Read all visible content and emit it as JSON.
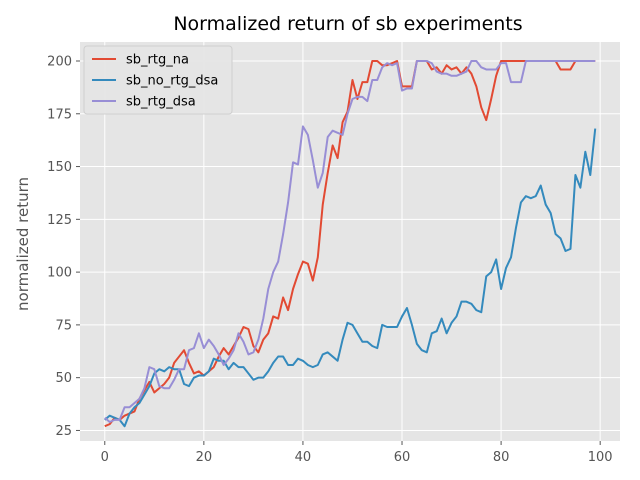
{
  "chart_data": {
    "type": "line",
    "title": "Normalized return of sb experiments",
    "xlabel": "",
    "ylabel": "normalized return",
    "xlim": [
      -5,
      104
    ],
    "ylim": [
      20,
      209
    ],
    "xticks": [
      0,
      20,
      40,
      60,
      80,
      100
    ],
    "yticks": [
      25,
      50,
      75,
      100,
      125,
      150,
      175,
      200
    ],
    "grid": true,
    "background": "#e5e5e5",
    "legend_position": "top-left",
    "series": [
      {
        "name": "sb_rtg_na",
        "color": "#e24a33",
        "x": [
          0,
          1,
          2,
          3,
          4,
          5,
          6,
          7,
          8,
          9,
          10,
          11,
          12,
          13,
          14,
          15,
          16,
          17,
          18,
          19,
          20,
          21,
          22,
          23,
          24,
          25,
          26,
          27,
          28,
          29,
          30,
          31,
          32,
          33,
          34,
          35,
          36,
          37,
          38,
          39,
          40,
          41,
          42,
          43,
          44,
          45,
          46,
          47,
          48,
          49,
          50,
          51,
          52,
          53,
          54,
          55,
          56,
          57,
          58,
          59,
          60,
          61,
          62,
          63,
          64,
          65,
          66,
          67,
          68,
          69,
          70,
          71,
          72,
          73,
          74,
          75,
          76,
          77,
          78,
          79,
          80,
          81,
          82,
          83,
          84,
          85,
          86,
          87,
          88,
          89,
          90,
          91,
          92,
          93,
          94,
          95,
          96,
          97,
          98,
          99
        ],
        "y": [
          27,
          28,
          31,
          30,
          32,
          33,
          34,
          40,
          44,
          48,
          43,
          45,
          47,
          50,
          57,
          60,
          63,
          57,
          52,
          53,
          51,
          53,
          55,
          60,
          64,
          61,
          65,
          69,
          74,
          73,
          65,
          62,
          68,
          71,
          79,
          78,
          88,
          82,
          92,
          99,
          105,
          104,
          96,
          107,
          132,
          147,
          160,
          154,
          171,
          176,
          191,
          182,
          190,
          190,
          200,
          200,
          198,
          198,
          199,
          200,
          188,
          188,
          188,
          200,
          200,
          200,
          196,
          197,
          194,
          198,
          196,
          197,
          194,
          197,
          194,
          188,
          178,
          172,
          182,
          193,
          200,
          200,
          200,
          200,
          200,
          200,
          200,
          200,
          200,
          200,
          200,
          200,
          196,
          196,
          196,
          200,
          200,
          200,
          200,
          200
        ]
      },
      {
        "name": "sb_no_rtg_dsa",
        "color": "#348abd",
        "x": [
          0,
          1,
          2,
          3,
          4,
          5,
          6,
          7,
          8,
          9,
          10,
          11,
          12,
          13,
          14,
          15,
          16,
          17,
          18,
          19,
          20,
          21,
          22,
          23,
          24,
          25,
          26,
          27,
          28,
          29,
          30,
          31,
          32,
          33,
          34,
          35,
          36,
          37,
          38,
          39,
          40,
          41,
          42,
          43,
          44,
          45,
          46,
          47,
          48,
          49,
          50,
          51,
          52,
          53,
          54,
          55,
          56,
          57,
          58,
          59,
          60,
          61,
          62,
          63,
          64,
          65,
          66,
          67,
          68,
          69,
          70,
          71,
          72,
          73,
          74,
          75,
          76,
          77,
          78,
          79,
          80,
          81,
          82,
          83,
          84,
          85,
          86,
          87,
          88,
          89,
          90,
          91,
          92,
          93,
          94,
          95,
          96,
          97,
          98,
          99
        ],
        "y": [
          30,
          32,
          31,
          30,
          27,
          33,
          36,
          38,
          42,
          46,
          52,
          54,
          53,
          55,
          54,
          54,
          47,
          46,
          50,
          51,
          51,
          53,
          59,
          58,
          58,
          54,
          57,
          55,
          55,
          52,
          49,
          50,
          50,
          53,
          57,
          60,
          60,
          56,
          56,
          59,
          58,
          56,
          55,
          56,
          61,
          62,
          60,
          58,
          68,
          76,
          75,
          71,
          67,
          67,
          65,
          64,
          75,
          74,
          74,
          74,
          79,
          83,
          75,
          66,
          63,
          62,
          71,
          72,
          78,
          71,
          76,
          79,
          86,
          86,
          85,
          82,
          81,
          98,
          100,
          106,
          92,
          102,
          107,
          121,
          133,
          136,
          135,
          136,
          141,
          132,
          128,
          118,
          116,
          110,
          111,
          146,
          140,
          157,
          146,
          168
        ]
      },
      {
        "name": "sb_rtg_dsa",
        "color": "#988ed5",
        "x": [
          0,
          1,
          2,
          3,
          4,
          5,
          6,
          7,
          8,
          9,
          10,
          11,
          12,
          13,
          14,
          15,
          16,
          17,
          18,
          19,
          20,
          21,
          22,
          23,
          24,
          25,
          26,
          27,
          28,
          29,
          30,
          31,
          32,
          33,
          34,
          35,
          36,
          37,
          38,
          39,
          40,
          41,
          42,
          43,
          44,
          45,
          46,
          47,
          48,
          49,
          50,
          51,
          52,
          53,
          54,
          55,
          56,
          57,
          58,
          59,
          60,
          61,
          62,
          63,
          64,
          65,
          66,
          67,
          68,
          69,
          70,
          71,
          72,
          73,
          74,
          75,
          76,
          77,
          78,
          79,
          80,
          81,
          82,
          83,
          84,
          85,
          86,
          87,
          88,
          89,
          90,
          91,
          92,
          93,
          94,
          95,
          96,
          97,
          98,
          99
        ],
        "y": [
          31,
          29,
          30,
          30,
          36,
          36,
          38,
          40,
          45,
          55,
          54,
          46,
          45,
          45,
          49,
          54,
          54,
          63,
          64,
          71,
          64,
          68,
          65,
          61,
          56,
          59,
          63,
          71,
          67,
          61,
          62,
          68,
          78,
          92,
          100,
          105,
          118,
          133,
          152,
          151,
          169,
          165,
          153,
          140,
          147,
          164,
          167,
          166,
          165,
          175,
          182,
          183,
          183,
          181,
          191,
          191,
          197,
          199,
          198,
          199,
          186,
          187,
          187,
          200,
          200,
          200,
          199,
          195,
          194,
          194,
          193,
          193,
          194,
          195,
          200,
          200,
          197,
          196,
          196,
          196,
          199,
          199,
          190,
          190,
          190,
          200,
          200,
          200,
          200,
          200,
          200,
          200,
          200,
          200,
          200,
          200,
          200,
          200,
          200,
          200
        ]
      }
    ]
  }
}
